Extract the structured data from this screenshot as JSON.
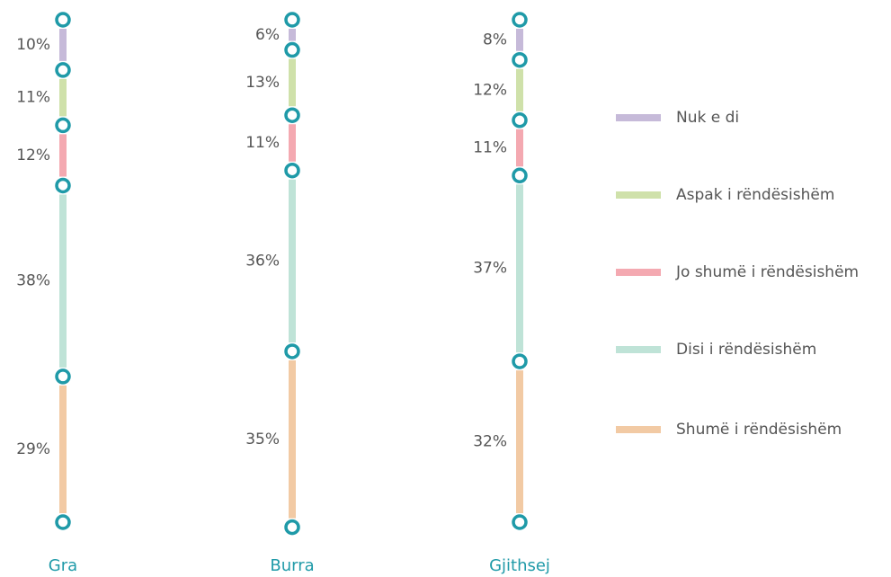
{
  "chart_data": {
    "type": "stacked_column",
    "categories": [
      "Gra",
      "Burra",
      "Gjithsej"
    ],
    "series": [
      {
        "name": "Nuk e di",
        "color": "#c6bad9",
        "values": [
          10,
          6,
          8
        ],
        "value_labels": [
          "10%",
          "6%",
          "8%"
        ]
      },
      {
        "name": "Aspak i rëndësishëm",
        "color": "#cfe1aa",
        "values": [
          11,
          13,
          12
        ],
        "value_labels": [
          "11%",
          "13%",
          "12%"
        ]
      },
      {
        "name": "Jo shumë i rëndësishëm",
        "color": "#f4a9b1",
        "values": [
          12,
          11,
          11
        ],
        "value_labels": [
          "12%",
          "11%",
          "11%"
        ]
      },
      {
        "name": "Disi i rëndësishëm",
        "color": "#bfe3d7",
        "values": [
          38,
          36,
          37
        ],
        "value_labels": [
          "38%",
          "36%",
          "37%"
        ]
      },
      {
        "name": "Shumë i rëndësishëm",
        "color": "#f2caa4",
        "values": [
          29,
          35,
          32
        ],
        "value_labels": [
          "29%",
          "35%",
          "32%"
        ]
      }
    ],
    "ylim": [
      0,
      100
    ],
    "node_color": "#1f9aa8",
    "category_color": "#1f9aa8"
  }
}
